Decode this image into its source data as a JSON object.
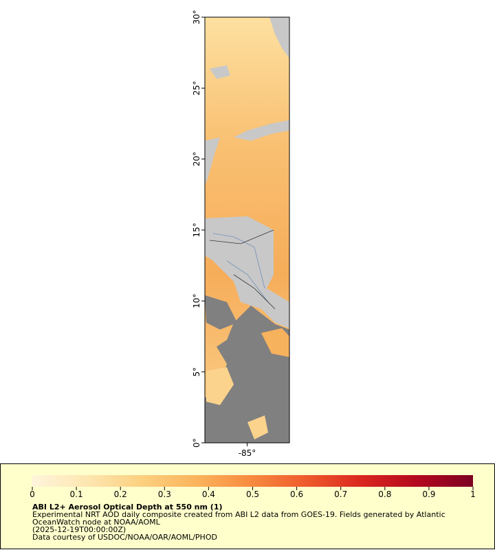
{
  "map": {
    "lat_range": [
      0,
      30
    ],
    "lat_ticks": [
      {
        "value": 0,
        "label": "0°"
      },
      {
        "value": 5,
        "label": "5°"
      },
      {
        "value": 10,
        "label": "10°"
      },
      {
        "value": 15,
        "label": "15°"
      },
      {
        "value": 20,
        "label": "20°"
      },
      {
        "value": 25,
        "label": "25°"
      },
      {
        "value": 30,
        "label": "30°"
      }
    ],
    "lon_range": [
      -88,
      -82
    ],
    "lon_ticks": [
      {
        "value": -85,
        "label": "-85°"
      }
    ]
  },
  "legend": {
    "title": "ABI L2+ Aerosol Optical Depth at 550 nm (1)",
    "range": [
      0,
      1
    ],
    "ticks": [
      0,
      0.1,
      0.2,
      0.3,
      0.4,
      0.5,
      0.6,
      0.7,
      0.8,
      0.9,
      1
    ],
    "colormap": [
      "#fff5dc",
      "#fde6b0",
      "#fcd07f",
      "#fbb35c",
      "#f7893f",
      "#ee5a2c",
      "#d9261f",
      "#b3081f",
      "#7d0022"
    ],
    "caption": [
      "Experimental NRT AOD daily composite created from ABI L2 data from GOES-19. Fields generated by Atlantic",
      "OceanWatch node at NOAA/AOML",
      "(2025-12-19T00:00:00Z)",
      "Data courtesy of USDOC/NOAA/OAR/AOML/PHOD"
    ]
  }
}
